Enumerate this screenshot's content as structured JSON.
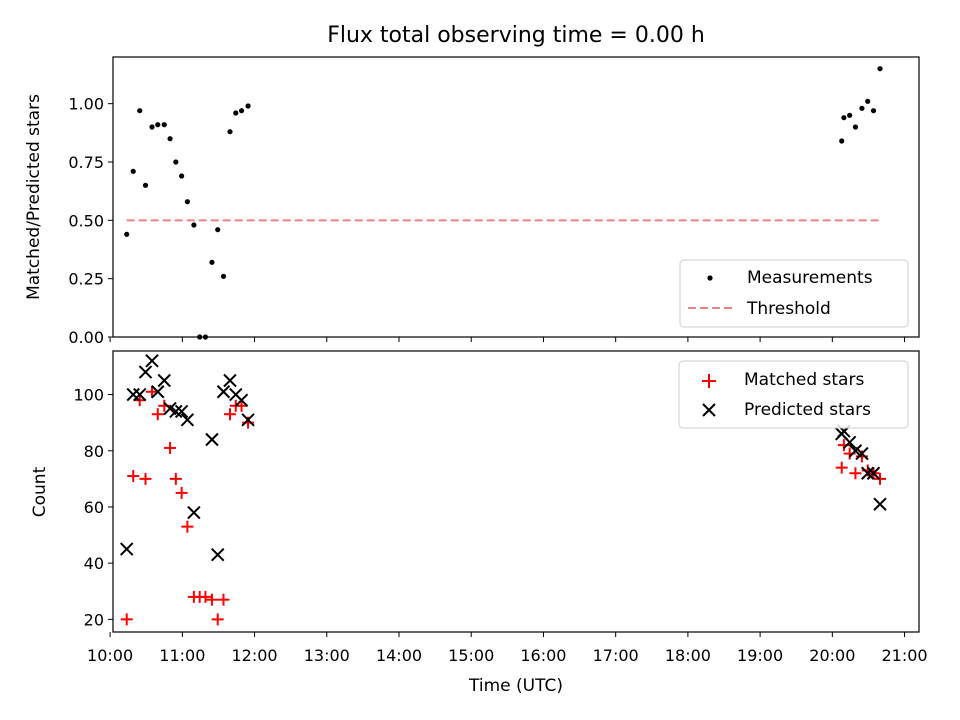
{
  "chart_data": [
    {
      "type": "scatter",
      "title": "Flux total observing time = 0.00 h",
      "xlabel": "",
      "ylabel": "Matched/Predicted stars",
      "xlim": [
        10.04,
        21.2
      ],
      "ylim": [
        0.0,
        1.2
      ],
      "yticks": [
        0.0,
        0.25,
        0.5,
        0.75,
        1.0
      ],
      "ytick_labels": [
        "0.00",
        "0.25",
        "0.50",
        "0.75",
        "1.00"
      ],
      "legend_position": "lower-right",
      "series": [
        {
          "name": "Measurements",
          "marker": "dot",
          "color": "#000000",
          "x": [
            10.23,
            10.32,
            10.41,
            10.49,
            10.58,
            10.66,
            10.75,
            10.83,
            10.91,
            10.99,
            11.07,
            11.16,
            11.24,
            11.32,
            11.41,
            11.49,
            11.57,
            11.66,
            11.74,
            11.82,
            11.91,
            20.13,
            20.16,
            20.24,
            20.32,
            20.41,
            20.49,
            20.57,
            20.66
          ],
          "y": [
            0.44,
            0.71,
            0.97,
            0.65,
            0.9,
            0.91,
            0.91,
            0.85,
            0.75,
            0.69,
            0.58,
            0.48,
            0.0,
            0.0,
            0.32,
            0.46,
            0.26,
            0.88,
            0.96,
            0.97,
            0.99,
            0.84,
            0.94,
            0.95,
            0.9,
            0.98,
            1.01,
            0.97,
            1.15
          ]
        },
        {
          "name": "Threshold",
          "marker": "dashed-line",
          "color": "#f08080",
          "x": [
            10.23,
            20.66
          ],
          "y": [
            0.5,
            0.5
          ]
        }
      ]
    },
    {
      "type": "scatter",
      "title": "",
      "xlabel": "Time (UTC)",
      "ylabel": "Count",
      "xlim": [
        10.04,
        21.2
      ],
      "ylim": [
        15.5,
        115.5
      ],
      "yticks": [
        20,
        40,
        60,
        80,
        100
      ],
      "ytick_labels": [
        "20",
        "40",
        "60",
        "80",
        "100"
      ],
      "xticks": [
        10,
        11,
        12,
        13,
        14,
        15,
        16,
        17,
        18,
        19,
        20,
        21
      ],
      "xtick_labels": [
        "10:00",
        "11:00",
        "12:00",
        "13:00",
        "14:00",
        "15:00",
        "16:00",
        "17:00",
        "18:00",
        "19:00",
        "20:00",
        "21:00"
      ],
      "legend_position": "upper-right",
      "series": [
        {
          "name": "Matched stars",
          "marker": "plus",
          "color": "#ff0000",
          "x": [
            10.23,
            10.32,
            10.41,
            10.49,
            10.58,
            10.66,
            10.75,
            10.83,
            10.91,
            10.99,
            11.07,
            11.16,
            11.24,
            11.32,
            11.41,
            11.49,
            11.57,
            11.66,
            11.74,
            11.82,
            11.91,
            20.13,
            20.16,
            20.24,
            20.32,
            20.41,
            20.49,
            20.57,
            20.66
          ],
          "y": [
            20,
            71,
            98,
            70,
            101,
            93,
            96,
            81,
            70,
            65,
            53,
            28,
            28,
            28,
            27,
            20,
            27,
            93,
            96,
            96,
            90,
            74,
            82,
            79,
            72,
            78,
            73,
            72,
            70
          ]
        },
        {
          "name": "Predicted stars",
          "marker": "x",
          "color": "#000000",
          "x": [
            10.23,
            10.32,
            10.41,
            10.49,
            10.58,
            10.66,
            10.75,
            10.83,
            10.91,
            10.99,
            11.07,
            11.16,
            11.41,
            11.49,
            11.57,
            11.66,
            11.74,
            11.82,
            11.91,
            20.13,
            20.16,
            20.24,
            20.32,
            20.41,
            20.49,
            20.57,
            20.66
          ],
          "y": [
            45,
            100,
            100,
            108,
            112,
            101,
            105,
            95,
            94,
            94,
            91,
            58,
            84,
            43,
            101,
            105,
            100,
            98,
            91,
            86,
            87,
            83,
            80,
            79,
            72,
            72,
            61
          ]
        }
      ]
    }
  ]
}
